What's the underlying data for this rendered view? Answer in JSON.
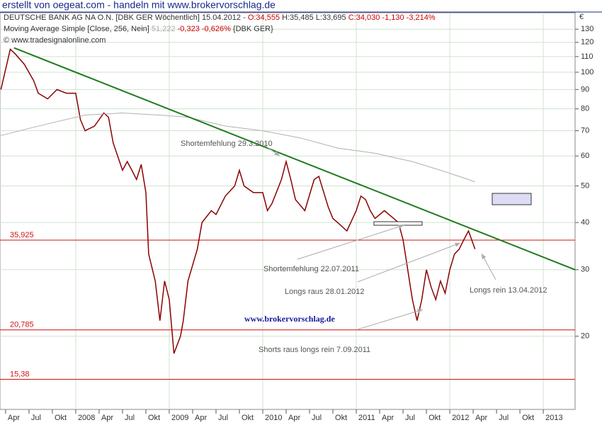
{
  "chart_data": {
    "type": "line",
    "title": "erstellt von oegeat.com - handeln mit www.brokervorschlag.de",
    "header": {
      "instrument": "DEUTSCHE BANK AG NA O.N. [DBK GER  Wöchentlich] 15.04.2012 -",
      "open": "O:34,555",
      "high_low": "H:35,485 L:33,695",
      "close": "C:34,030 -1,130 -3,214%"
    },
    "indicator": {
      "name": "Moving Average Simple [Close, 256, Nein]",
      "value": "51,222",
      "change": "-0,323 -0,626%",
      "symbol": "{DBK GER}"
    },
    "copyright": "© www.tradesignalonline.com",
    "watermark": "www.brokervorschlag.de",
    "currency": "€",
    "log_scale": true,
    "ylim": [
      12.8,
      143.7
    ],
    "yticks": [
      20,
      30,
      40,
      50,
      60,
      70,
      80,
      90,
      100,
      110,
      120,
      130
    ],
    "xlim": [
      2007.19,
      2013.34
    ],
    "xticks": [
      {
        "value": 2007.25,
        "label": "Apr"
      },
      {
        "value": 2007.5,
        "label": "Jul"
      },
      {
        "value": 2007.75,
        "label": "Okt"
      },
      2008,
      {
        "value": 2008.25,
        "label": "Apr"
      },
      {
        "value": 2008.5,
        "label": "Jul"
      },
      {
        "value": 2008.75,
        "label": "Okt"
      },
      2009,
      {
        "value": 2009.25,
        "label": "Apr"
      },
      {
        "value": 2009.5,
        "label": "Jul"
      },
      {
        "value": 2009.75,
        "label": "Okt"
      },
      2010,
      {
        "value": 2010.25,
        "label": "Apr"
      },
      {
        "value": 2010.5,
        "label": "Jul"
      },
      {
        "value": 2010.75,
        "label": "Okt"
      },
      2011,
      {
        "value": 2011.25,
        "label": "Apr"
      },
      {
        "value": 2011.5,
        "label": "Jul"
      },
      {
        "value": 2011.75,
        "label": "Okt"
      },
      2012,
      {
        "value": 2012.25,
        "label": "Apr"
      },
      {
        "value": 2012.5,
        "label": "Jul"
      },
      {
        "value": 2012.75,
        "label": "Okt"
      },
      2013
    ],
    "series": [
      {
        "name": "DEUTSCHE BANK AG NA O.N.",
        "color": "#8b0000",
        "x": [
          2007.2,
          2007.3,
          2007.35,
          2007.45,
          2007.55,
          2007.6,
          2007.7,
          2007.8,
          2007.9,
          2008.0,
          2008.05,
          2008.1,
          2008.2,
          2008.3,
          2008.35,
          2008.4,
          2008.5,
          2008.55,
          2008.6,
          2008.65,
          2008.7,
          2008.75,
          2008.78,
          2008.85,
          2008.9,
          2008.95,
          2009.0,
          2009.05,
          2009.12,
          2009.15,
          2009.2,
          2009.3,
          2009.35,
          2009.45,
          2009.5,
          2009.6,
          2009.7,
          2009.75,
          2009.8,
          2009.9,
          2010.0,
          2010.05,
          2010.1,
          2010.2,
          2010.25,
          2010.3,
          2010.35,
          2010.45,
          2010.55,
          2010.6,
          2010.7,
          2010.75,
          2010.8,
          2010.9,
          2011.0,
          2011.05,
          2011.1,
          2011.15,
          2011.2,
          2011.3,
          2011.4,
          2011.45,
          2011.5,
          2011.55,
          2011.6,
          2011.65,
          2011.7,
          2011.75,
          2011.8,
          2011.85,
          2011.9,
          2011.95,
          2012.0,
          2012.05,
          2012.1,
          2012.15,
          2012.2,
          2012.27
        ],
        "values": [
          90,
          115,
          112,
          105,
          95,
          88,
          85,
          90,
          88,
          88,
          75,
          70,
          72,
          78,
          76,
          65,
          55,
          58,
          55,
          52,
          57,
          48,
          33,
          28,
          22,
          28,
          25,
          18,
          20,
          22,
          28,
          34,
          40,
          43,
          42,
          47,
          50,
          55,
          50,
          48,
          48,
          43,
          45,
          52,
          58,
          52,
          46,
          43,
          52,
          53,
          44,
          41,
          40,
          38,
          43,
          47,
          46,
          43,
          41,
          43,
          41,
          40,
          36,
          30,
          25,
          22,
          25,
          30,
          27,
          25,
          28,
          26,
          30,
          33,
          34,
          36,
          38,
          34.03
        ]
      },
      {
        "name": "Moving Average Simple",
        "color": "#b0b0b0",
        "x": [
          2007.2,
          2007.5,
          2007.8,
          2008.1,
          2008.5,
          2008.9,
          2009.2,
          2009.6,
          2010.0,
          2010.4,
          2010.8,
          2011.2,
          2011.6,
          2011.9,
          2012.2,
          2012.27
        ],
        "values": [
          68,
          71,
          74,
          77,
          78,
          77,
          76,
          72,
          70,
          67,
          63,
          61,
          58,
          55,
          52,
          51.2
        ]
      }
    ],
    "trendline": {
      "color": "#1e7b1e",
      "x": [
        2007.34,
        2013.34
      ],
      "values": [
        116,
        30
      ]
    },
    "levels": [
      {
        "value": 35.925,
        "label": "35,925"
      },
      {
        "value": 20.785,
        "label": "20,785"
      },
      {
        "value": 15.38,
        "label": "15,38"
      }
    ],
    "level_color": "#d01010",
    "annotations": [
      "Shortemfehlung 29.3.2010",
      "Shortemfehlung  22.07.2011",
      "Longs raus 28.01.2012",
      "Longs rein  13.04.2012",
      "Shorts raus longs rein  7.09.2011"
    ]
  }
}
